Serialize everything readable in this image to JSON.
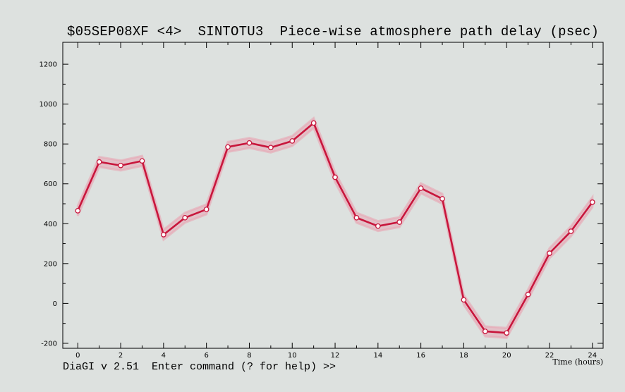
{
  "title": "$05SEP08XF <4>  SINTOTU3  Piece-wise atmosphere path delay (psec)",
  "status_line": "DiaGI v 2.51  Enter command (? for help) >>",
  "colors": {
    "background": "#dde1df",
    "line": "#c8163c",
    "band": "#e8a7b4",
    "marker_fill": "#ffffff"
  },
  "chart_data": {
    "type": "line",
    "title": "$05SEP08XF <4>  SINTOTU3  Piece-wise atmosphere path delay (psec)",
    "xlabel": "Time (hours)",
    "ylabel": "",
    "xlim": [
      -0.7,
      24.5
    ],
    "ylim": [
      -225,
      1310
    ],
    "x_ticks": [
      "0",
      "2",
      "4",
      "6",
      "8",
      "10",
      "12",
      "14",
      "16",
      "18",
      "20",
      "22",
      "24"
    ],
    "y_ticks": [
      "-200",
      "0",
      "200",
      "400",
      "600",
      "800",
      "1000",
      "1200"
    ],
    "grid": false,
    "series": [
      {
        "x": [
          0,
          1,
          2,
          3,
          4,
          5,
          6,
          7,
          8,
          9,
          10,
          11,
          12,
          13,
          14,
          15,
          16,
          17,
          18,
          19,
          20,
          21,
          22,
          23,
          24
        ],
        "values": [
          465,
          710,
          692,
          715,
          345,
          430,
          472,
          785,
          805,
          782,
          815,
          905,
          633,
          430,
          388,
          408,
          578,
          525,
          18,
          -140,
          -148,
          45,
          252,
          362,
          508
        ],
        "error": [
          25,
          25,
          25,
          25,
          25,
          25,
          25,
          25,
          25,
          25,
          25,
          25,
          25,
          25,
          25,
          25,
          25,
          25,
          25,
          25,
          25,
          25,
          25,
          25,
          25
        ]
      }
    ]
  }
}
